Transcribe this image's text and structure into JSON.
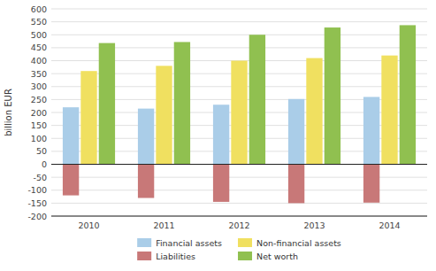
{
  "chart_data": {
    "type": "bar",
    "categories": [
      "2010",
      "2011",
      "2012",
      "2013",
      "2014"
    ],
    "series": [
      {
        "name": "Financial assets",
        "color": "#aacde8",
        "values": [
          220,
          215,
          230,
          252,
          260
        ]
      },
      {
        "name": "Non-financial assets",
        "color": "#f0e060",
        "values": [
          360,
          380,
          400,
          410,
          420
        ]
      },
      {
        "name": "Liabilities",
        "color": "#c87878",
        "values": [
          -120,
          -130,
          -145,
          -150,
          -148
        ]
      },
      {
        "name": "Net worth",
        "color": "#90c050",
        "values": [
          468,
          472,
          500,
          528,
          537
        ]
      }
    ],
    "ylabel": "billion EUR",
    "ylim": [
      -200,
      600
    ],
    "yticks": [
      -200,
      -150,
      -100,
      -50,
      0,
      50,
      100,
      150,
      200,
      250,
      300,
      350,
      400,
      450,
      500,
      550,
      600
    ],
    "grid": true,
    "legend": "bottom"
  }
}
